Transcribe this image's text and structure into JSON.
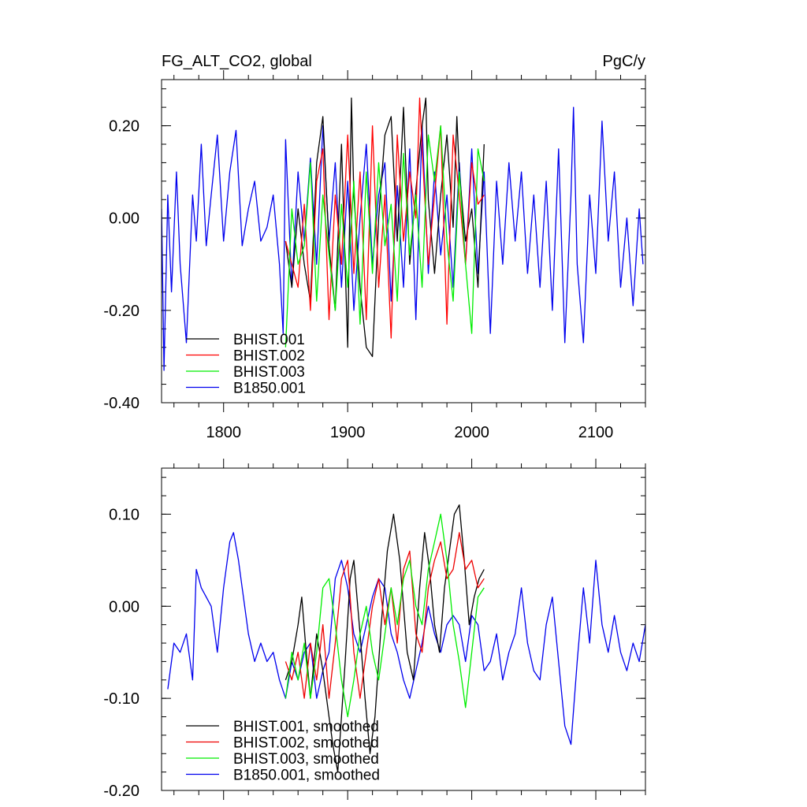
{
  "chart_data": [
    {
      "type": "line",
      "title": "FG_ALT_CO2, global",
      "units": "PgC/y",
      "xlabel": "",
      "ylabel": "",
      "xlim": [
        1750,
        2140
      ],
      "ylim": [
        -0.4,
        0.3
      ],
      "xticks": [
        1800,
        1900,
        2000,
        2100
      ],
      "xtick_labels": [
        "1800",
        "1900",
        "2000",
        "2100"
      ],
      "yticks": [
        -0.4,
        -0.2,
        0.0,
        0.2
      ],
      "ytick_labels": [
        "-0.40",
        "-0.20",
        "0.00",
        "0.20"
      ],
      "grid": false,
      "legend_position": "bottom-left",
      "series": [
        {
          "name": "BHIST.001",
          "color": "#000000",
          "x": [
            1850,
            1855,
            1860,
            1865,
            1870,
            1875,
            1880,
            1885,
            1890,
            1895,
            1900,
            1903,
            1905,
            1910,
            1915,
            1920,
            1925,
            1930,
            1935,
            1940,
            1945,
            1950,
            1955,
            1960,
            1963,
            1965,
            1970,
            1975,
            1980,
            1985,
            1988,
            1990,
            1995,
            2000,
            2005,
            2010
          ],
          "y": [
            -0.05,
            -0.15,
            0.02,
            -0.1,
            -0.18,
            0.12,
            0.22,
            -0.06,
            -0.2,
            0.16,
            -0.28,
            0.26,
            0.05,
            -0.15,
            -0.28,
            -0.3,
            0.0,
            0.18,
            0.22,
            -0.05,
            0.24,
            -0.1,
            0.06,
            0.2,
            0.26,
            0.04,
            -0.12,
            0.05,
            0.18,
            -0.02,
            0.22,
            0.1,
            -0.05,
            0.02,
            -0.15,
            0.16
          ]
        },
        {
          "name": "BHIST.002",
          "color": "#ff0000",
          "x": [
            1850,
            1855,
            1860,
            1865,
            1870,
            1875,
            1880,
            1885,
            1890,
            1895,
            1900,
            1905,
            1910,
            1915,
            1920,
            1925,
            1930,
            1935,
            1940,
            1945,
            1950,
            1955,
            1958,
            1960,
            1965,
            1970,
            1975,
            1980,
            1985,
            1990,
            1995,
            2000,
            2005,
            2010
          ],
          "y": [
            -0.05,
            -0.1,
            -0.15,
            0.03,
            -0.2,
            0.08,
            0.15,
            -0.22,
            0.05,
            -0.1,
            0.18,
            -0.12,
            0.1,
            -0.22,
            0.2,
            -0.15,
            0.05,
            -0.26,
            0.18,
            -0.05,
            0.1,
            0.0,
            0.26,
            0.15,
            -0.1,
            0.05,
            0.2,
            -0.23,
            0.18,
            0.05,
            -0.1,
            0.12,
            0.03,
            0.05
          ]
        },
        {
          "name": "BHIST.003",
          "color": "#00ee00",
          "x": [
            1850,
            1855,
            1860,
            1865,
            1870,
            1875,
            1880,
            1885,
            1890,
            1895,
            1900,
            1905,
            1910,
            1915,
            1920,
            1925,
            1930,
            1935,
            1940,
            1945,
            1950,
            1955,
            1960,
            1965,
            1970,
            1975,
            1980,
            1985,
            1990,
            1995,
            2000,
            2005,
            2010
          ],
          "y": [
            -0.28,
            0.02,
            -0.1,
            -0.06,
            0.12,
            -0.18,
            0.05,
            -0.08,
            -0.2,
            0.03,
            -0.15,
            0.08,
            -0.23,
            0.1,
            -0.12,
            0.12,
            -0.06,
            0.03,
            -0.18,
            0.14,
            -0.08,
            0.05,
            -0.15,
            0.18,
            0.08,
            0.2,
            -0.05,
            -0.18,
            0.1,
            -0.1,
            -0.25,
            0.15,
            0.08
          ]
        },
        {
          "name": "B1850.001",
          "color": "#0000ee",
          "x": [
            1750,
            1752,
            1755,
            1758,
            1762,
            1765,
            1770,
            1775,
            1778,
            1782,
            1786,
            1790,
            1795,
            1800,
            1805,
            1810,
            1815,
            1820,
            1825,
            1830,
            1835,
            1840,
            1845,
            1848,
            1850,
            1855,
            1860,
            1865,
            1870,
            1875,
            1880,
            1885,
            1890,
            1895,
            1900,
            1905,
            1910,
            1915,
            1920,
            1925,
            1930,
            1935,
            1940,
            1945,
            1950,
            1955,
            1960,
            1965,
            1970,
            1975,
            1980,
            1985,
            1990,
            1995,
            2000,
            2005,
            2010,
            2015,
            2020,
            2025,
            2030,
            2035,
            2040,
            2045,
            2050,
            2055,
            2060,
            2065,
            2070,
            2075,
            2080,
            2082,
            2085,
            2090,
            2095,
            2100,
            2105,
            2110,
            2115,
            2120,
            2125,
            2130,
            2135,
            2138
          ],
          "y": [
            0.02,
            -0.33,
            0.05,
            -0.16,
            0.1,
            -0.1,
            -0.27,
            0.05,
            -0.05,
            0.16,
            -0.06,
            0.05,
            0.18,
            -0.05,
            0.1,
            0.19,
            -0.06,
            0.02,
            0.08,
            -0.05,
            -0.02,
            0.05,
            -0.1,
            -0.25,
            0.17,
            -0.15,
            0.1,
            -0.05,
            0.13,
            -0.1,
            0.2,
            -0.05,
            0.12,
            -0.15,
            0.08,
            -0.2,
            0.0,
            0.16,
            -0.1,
            0.05,
            0.12,
            -0.18,
            0.07,
            -0.15,
            0.15,
            -0.22,
            0.2,
            -0.12,
            0.1,
            -0.08,
            0.05,
            -0.15,
            0.12,
            -0.1,
            0.15,
            -0.12,
            0.1,
            -0.25,
            0.08,
            -0.1,
            0.12,
            -0.05,
            0.1,
            -0.12,
            0.05,
            -0.15,
            0.08,
            -0.2,
            0.15,
            -0.27,
            0.05,
            0.24,
            -0.1,
            -0.27,
            0.05,
            -0.12,
            0.21,
            -0.05,
            0.1,
            -0.15,
            0.0,
            -0.19,
            0.02,
            -0.1
          ]
        }
      ]
    },
    {
      "type": "line",
      "title": "",
      "units": "",
      "xlabel": "",
      "ylabel": "",
      "xlim": [
        1750,
        2140
      ],
      "ylim": [
        -0.2,
        0.15
      ],
      "xticks": [
        1800,
        1900,
        2000,
        2100
      ],
      "xtick_labels": [],
      "yticks": [
        -0.2,
        -0.1,
        0.0,
        0.1
      ],
      "ytick_labels": [
        "-0.20",
        "-0.10",
        "0.00",
        "0.10"
      ],
      "grid": false,
      "legend_position": "bottom-left",
      "series": [
        {
          "name": "BHIST.001, smoothed",
          "color": "#000000",
          "x": [
            1850,
            1855,
            1860,
            1863,
            1866,
            1870,
            1875,
            1880,
            1885,
            1888,
            1892,
            1895,
            1898,
            1902,
            1905,
            1910,
            1914,
            1918,
            1922,
            1927,
            1932,
            1937,
            1942,
            1948,
            1953,
            1958,
            1962,
            1966,
            1970,
            1974,
            1978,
            1982,
            1986,
            1990,
            1994,
            1998,
            2002,
            2006,
            2010
          ],
          "y": [
            -0.08,
            -0.06,
            -0.02,
            0.01,
            -0.04,
            -0.1,
            -0.03,
            -0.07,
            -0.12,
            -0.15,
            -0.18,
            -0.12,
            -0.06,
            0.03,
            0.05,
            -0.03,
            -0.1,
            -0.16,
            -0.12,
            -0.02,
            0.06,
            0.1,
            0.05,
            -0.05,
            -0.08,
            0.02,
            0.08,
            0.04,
            -0.02,
            -0.05,
            0.02,
            0.06,
            0.1,
            0.11,
            0.05,
            -0.02,
            0.01,
            0.03,
            0.04
          ]
        },
        {
          "name": "BHIST.002, smoothed",
          "color": "#ee0000",
          "x": [
            1850,
            1855,
            1860,
            1865,
            1870,
            1875,
            1880,
            1885,
            1890,
            1895,
            1900,
            1905,
            1910,
            1915,
            1920,
            1925,
            1930,
            1935,
            1940,
            1945,
            1950,
            1955,
            1960,
            1965,
            1970,
            1975,
            1980,
            1985,
            1990,
            1995,
            2000,
            2005,
            2010
          ],
          "y": [
            -0.06,
            -0.08,
            -0.05,
            -0.1,
            -0.04,
            -0.08,
            -0.02,
            -0.1,
            -0.04,
            0.03,
            0.05,
            -0.05,
            -0.1,
            -0.05,
            0.0,
            0.03,
            -0.02,
            0.02,
            -0.04,
            0.04,
            0.06,
            -0.03,
            -0.05,
            0.02,
            0.05,
            0.07,
            0.03,
            0.04,
            0.08,
            0.04,
            0.05,
            0.02,
            0.03
          ]
        },
        {
          "name": "BHIST.003, smoothed",
          "color": "#00ee00",
          "x": [
            1850,
            1855,
            1860,
            1865,
            1870,
            1875,
            1880,
            1885,
            1890,
            1895,
            1900,
            1905,
            1910,
            1915,
            1920,
            1925,
            1930,
            1935,
            1940,
            1945,
            1950,
            1955,
            1960,
            1965,
            1970,
            1975,
            1980,
            1985,
            1990,
            1995,
            2000,
            2005,
            2010
          ],
          "y": [
            -0.1,
            -0.05,
            -0.08,
            -0.04,
            -0.1,
            -0.05,
            0.02,
            0.03,
            -0.02,
            -0.08,
            -0.12,
            -0.08,
            -0.03,
            0.0,
            -0.05,
            -0.08,
            -0.03,
            0.02,
            -0.02,
            0.03,
            0.05,
            0.0,
            -0.02,
            0.04,
            0.07,
            0.1,
            0.05,
            -0.02,
            -0.06,
            -0.11,
            -0.05,
            0.01,
            0.02
          ]
        },
        {
          "name": "B1850.001, smoothed",
          "color": "#0000ee",
          "x": [
            1755,
            1760,
            1765,
            1770,
            1775,
            1778,
            1782,
            1786,
            1790,
            1795,
            1800,
            1805,
            1808,
            1812,
            1815,
            1820,
            1825,
            1830,
            1835,
            1840,
            1845,
            1850,
            1855,
            1860,
            1865,
            1870,
            1875,
            1880,
            1885,
            1890,
            1895,
            1900,
            1905,
            1910,
            1915,
            1920,
            1925,
            1930,
            1935,
            1940,
            1945,
            1950,
            1955,
            1960,
            1965,
            1970,
            1975,
            1980,
            1985,
            1990,
            1995,
            2000,
            2005,
            2010,
            2015,
            2020,
            2025,
            2030,
            2035,
            2040,
            2045,
            2050,
            2055,
            2060,
            2065,
            2070,
            2075,
            2080,
            2085,
            2090,
            2095,
            2100,
            2105,
            2110,
            2115,
            2120,
            2125,
            2130,
            2135,
            2140
          ],
          "y": [
            -0.09,
            -0.04,
            -0.05,
            -0.03,
            -0.08,
            0.04,
            0.02,
            0.01,
            0.0,
            -0.05,
            0.02,
            0.07,
            0.08,
            0.05,
            0.02,
            -0.03,
            -0.06,
            -0.04,
            -0.06,
            -0.05,
            -0.08,
            -0.1,
            -0.06,
            -0.08,
            -0.05,
            -0.04,
            -0.1,
            -0.07,
            -0.05,
            0.03,
            0.05,
            0.02,
            -0.03,
            -0.05,
            -0.02,
            0.01,
            0.03,
            0.02,
            -0.03,
            -0.05,
            -0.08,
            -0.1,
            -0.07,
            -0.04,
            0.0,
            -0.03,
            -0.05,
            -0.02,
            -0.01,
            -0.02,
            -0.06,
            -0.01,
            -0.02,
            -0.07,
            -0.06,
            -0.03,
            -0.08,
            -0.05,
            -0.03,
            0.02,
            -0.04,
            -0.07,
            -0.08,
            -0.02,
            0.01,
            -0.06,
            -0.13,
            -0.15,
            -0.06,
            0.02,
            -0.04,
            0.05,
            -0.02,
            -0.05,
            -0.01,
            -0.05,
            -0.07,
            -0.04,
            -0.06,
            -0.02
          ]
        }
      ]
    }
  ]
}
